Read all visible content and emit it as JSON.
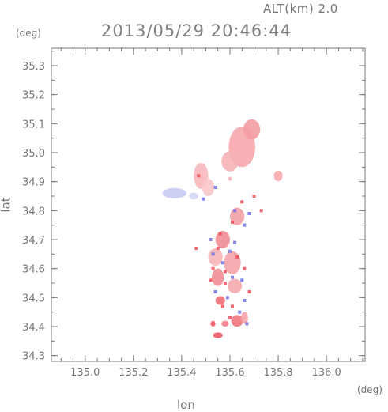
{
  "header": {
    "altitude_label": "ALT(km)  2.0",
    "timestamp": "2013/05/29 20:46:44"
  },
  "chart_data": {
    "type": "scatter",
    "title": "2013/05/29 20:46:44",
    "xlabel": "lon",
    "ylabel": "lat",
    "x_unit": "(deg)",
    "y_unit": "(deg)",
    "xlim": [
      134.86,
      136.16
    ],
    "ylim": [
      34.28,
      35.36
    ],
    "x_ticks": [
      "135.0",
      "135.2",
      "135.4",
      "135.6",
      "135.8",
      "136.0"
    ],
    "x_tick_values": [
      135.0,
      135.2,
      135.4,
      135.6,
      135.8,
      136.0
    ],
    "y_ticks": [
      "34.3",
      "34.4",
      "34.5",
      "34.6",
      "34.7",
      "34.8",
      "34.9",
      "35.0",
      "35.1",
      "35.2",
      "35.3"
    ],
    "y_tick_values": [
      34.3,
      34.4,
      34.5,
      34.6,
      34.7,
      34.8,
      34.9,
      35.0,
      35.1,
      35.2,
      35.3
    ],
    "grid": false,
    "colors": {
      "positive_strong": "#ee4d5a",
      "positive_weak": "#f7b0b4",
      "negative_strong": "#6f6fe8",
      "negative_weak": "#c7c8f2",
      "axis": "#777777"
    },
    "regions": [
      {
        "lon": 135.65,
        "lat": 35.02,
        "rx": 0.055,
        "ry": 0.07,
        "color": "#f6a7ab"
      },
      {
        "lon": 135.69,
        "lat": 35.08,
        "rx": 0.035,
        "ry": 0.035,
        "color": "#f49ca1"
      },
      {
        "lon": 135.6,
        "lat": 34.97,
        "rx": 0.035,
        "ry": 0.035,
        "color": "#f6b3b6"
      },
      {
        "lon": 135.48,
        "lat": 34.92,
        "rx": 0.03,
        "ry": 0.045,
        "color": "#f8b7ba"
      },
      {
        "lon": 135.51,
        "lat": 34.88,
        "rx": 0.025,
        "ry": 0.03,
        "color": "#f9c6c8"
      },
      {
        "lon": 135.37,
        "lat": 34.86,
        "rx": 0.05,
        "ry": 0.018,
        "color": "#c9caf3"
      },
      {
        "lon": 135.45,
        "lat": 34.85,
        "rx": 0.02,
        "ry": 0.012,
        "color": "#d6d7f6"
      },
      {
        "lon": 135.8,
        "lat": 34.92,
        "rx": 0.018,
        "ry": 0.018,
        "color": "#f6aaae"
      },
      {
        "lon": 135.6,
        "lat": 34.91,
        "rx": 0.008,
        "ry": 0.007,
        "color": "#f8b8bb"
      },
      {
        "lon": 135.63,
        "lat": 34.78,
        "rx": 0.03,
        "ry": 0.03,
        "color": "#f3a0a5"
      },
      {
        "lon": 135.57,
        "lat": 34.7,
        "rx": 0.03,
        "ry": 0.03,
        "color": "#f08d93"
      },
      {
        "lon": 135.54,
        "lat": 34.64,
        "rx": 0.03,
        "ry": 0.03,
        "color": "#f7b5b8"
      },
      {
        "lon": 135.61,
        "lat": 34.62,
        "rx": 0.035,
        "ry": 0.04,
        "color": "#f5a4a8"
      },
      {
        "lon": 135.55,
        "lat": 34.57,
        "rx": 0.025,
        "ry": 0.03,
        "color": "#f08e94"
      },
      {
        "lon": 135.62,
        "lat": 34.54,
        "rx": 0.03,
        "ry": 0.025,
        "color": "#f6aaae"
      },
      {
        "lon": 135.56,
        "lat": 34.49,
        "rx": 0.02,
        "ry": 0.015,
        "color": "#ee6f78"
      },
      {
        "lon": 135.63,
        "lat": 34.42,
        "rx": 0.025,
        "ry": 0.02,
        "color": "#ef7880"
      },
      {
        "lon": 135.66,
        "lat": 34.43,
        "rx": 0.015,
        "ry": 0.02,
        "color": "#f4a2a6"
      },
      {
        "lon": 135.53,
        "lat": 34.41,
        "rx": 0.01,
        "ry": 0.01,
        "color": "#ee5a64"
      },
      {
        "lon": 135.55,
        "lat": 34.37,
        "rx": 0.02,
        "ry": 0.01,
        "color": "#ee5a64"
      },
      {
        "lon": 135.58,
        "lat": 34.41,
        "rx": 0.015,
        "ry": 0.01,
        "color": "#f07c84"
      }
    ],
    "speckles": [
      {
        "lon": 135.52,
        "lat": 34.7,
        "color": "#6f6fe8"
      },
      {
        "lon": 135.55,
        "lat": 34.67,
        "color": "#ee4d5a"
      },
      {
        "lon": 135.6,
        "lat": 34.66,
        "color": "#6f6fe8"
      },
      {
        "lon": 135.63,
        "lat": 34.64,
        "color": "#ee4d5a"
      },
      {
        "lon": 135.57,
        "lat": 34.62,
        "color": "#6f6fe8"
      },
      {
        "lon": 135.66,
        "lat": 34.6,
        "color": "#ee4d5a"
      },
      {
        "lon": 135.53,
        "lat": 34.6,
        "color": "#ee4d5a"
      },
      {
        "lon": 135.61,
        "lat": 34.57,
        "color": "#6f6fe8"
      },
      {
        "lon": 135.58,
        "lat": 34.55,
        "color": "#ee4d5a"
      },
      {
        "lon": 135.65,
        "lat": 34.56,
        "color": "#6f6fe8"
      },
      {
        "lon": 135.54,
        "lat": 34.52,
        "color": "#6f6fe8"
      },
      {
        "lon": 135.59,
        "lat": 34.5,
        "color": "#6f6fe8"
      },
      {
        "lon": 135.66,
        "lat": 34.49,
        "color": "#6f6fe8"
      },
      {
        "lon": 135.57,
        "lat": 34.47,
        "color": "#ee4d5a"
      },
      {
        "lon": 135.64,
        "lat": 34.45,
        "color": "#6f6fe8"
      },
      {
        "lon": 135.67,
        "lat": 34.41,
        "color": "#6f6fe8"
      },
      {
        "lon": 135.6,
        "lat": 34.43,
        "color": "#ee4d5a"
      },
      {
        "lon": 135.62,
        "lat": 34.8,
        "color": "#6f6fe8"
      },
      {
        "lon": 135.65,
        "lat": 34.83,
        "color": "#ee4d5a"
      },
      {
        "lon": 135.68,
        "lat": 34.79,
        "color": "#6f6fe8"
      },
      {
        "lon": 135.7,
        "lat": 34.85,
        "color": "#ee4d5a"
      },
      {
        "lon": 135.61,
        "lat": 34.76,
        "color": "#ee4d5a"
      },
      {
        "lon": 135.66,
        "lat": 34.75,
        "color": "#6f6fe8"
      },
      {
        "lon": 135.56,
        "lat": 34.72,
        "color": "#ee4d5a"
      },
      {
        "lon": 135.53,
        "lat": 34.65,
        "color": "#6f6fe8"
      },
      {
        "lon": 135.62,
        "lat": 34.69,
        "color": "#6f6fe8"
      },
      {
        "lon": 135.58,
        "lat": 34.59,
        "color": "#ee4d5a"
      },
      {
        "lon": 135.52,
        "lat": 34.56,
        "color": "#ee4d5a"
      },
      {
        "lon": 135.47,
        "lat": 34.92,
        "color": "#ee4d5a"
      },
      {
        "lon": 135.49,
        "lat": 34.84,
        "color": "#6f6fe8"
      },
      {
        "lon": 135.54,
        "lat": 34.88,
        "color": "#6f6fe8"
      },
      {
        "lon": 135.73,
        "lat": 34.8,
        "color": "#ee4d5a"
      },
      {
        "lon": 135.46,
        "lat": 34.67,
        "color": "#ee4d5a"
      },
      {
        "lon": 135.68,
        "lat": 34.52,
        "color": "#ee4d5a"
      },
      {
        "lon": 135.61,
        "lat": 34.47,
        "color": "#ee4d5a"
      }
    ]
  }
}
